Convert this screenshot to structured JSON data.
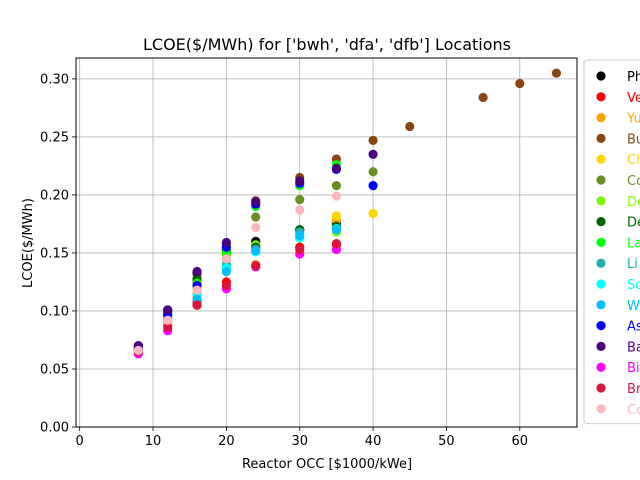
{
  "chart_data": {
    "type": "scatter",
    "title": "LCOE($/MWh) for ['bwh', 'dfa', 'dfb'] Locations",
    "xlabel": "Reactor OCC [$1000/kWe]",
    "ylabel": "LCOE($/MWh)",
    "xlim": [
      -0.5,
      67.8
    ],
    "ylim": [
      0.0,
      0.318
    ],
    "xticks": [
      0,
      10,
      20,
      30,
      40,
      50,
      60
    ],
    "yticks": [
      0.0,
      0.05,
      0.1,
      0.15,
      0.2,
      0.25,
      0.3
    ],
    "ytick_labels": [
      "0.00",
      "0.05",
      "0.10",
      "0.15",
      "0.20",
      "0.25",
      "0.30"
    ],
    "grid": true,
    "legend_position": "right (clipped)",
    "series": [
      {
        "name": "Ph",
        "color": "#000000",
        "x": [
          8,
          12,
          16,
          20,
          24,
          30,
          35
        ],
        "y": [
          0.07,
          0.1,
          0.132,
          0.145,
          0.16,
          0.17,
          0.176
        ]
      },
      {
        "name": "Ve",
        "color": "#ff0000",
        "x": [
          8,
          12,
          16,
          20,
          24,
          30,
          35
        ],
        "y": [
          0.066,
          0.088,
          0.108,
          0.125,
          0.14,
          0.155,
          0.157
        ]
      },
      {
        "name": "Yu",
        "color": "#ffa500",
        "x": [
          8,
          12,
          16,
          20,
          24,
          30,
          35
        ],
        "y": [
          0.066,
          0.09,
          0.112,
          0.14,
          0.14,
          0.165,
          0.178
        ]
      },
      {
        "name": "Bu",
        "color": "#8b4513",
        "x": [
          8,
          12,
          16,
          20,
          24,
          30,
          35,
          40,
          45,
          55,
          60,
          65
        ],
        "y": [
          0.07,
          0.1,
          0.133,
          0.158,
          0.195,
          0.215,
          0.231,
          0.247,
          0.259,
          0.284,
          0.296,
          0.305
        ]
      },
      {
        "name": "Ch",
        "color": "#ffd700",
        "x": [
          8,
          12,
          16,
          20,
          24,
          30,
          35,
          40
        ],
        "y": [
          0.066,
          0.09,
          0.115,
          0.14,
          0.155,
          0.163,
          0.182,
          0.184
        ]
      },
      {
        "name": "Co",
        "color": "#6b8e23",
        "x": [
          8,
          12,
          16,
          20,
          24,
          30,
          35,
          40
        ],
        "y": [
          0.068,
          0.098,
          0.126,
          0.152,
          0.181,
          0.196,
          0.208,
          0.22
        ]
      },
      {
        "name": "De",
        "color": "#7cfc00",
        "x": [
          8,
          12,
          16,
          20,
          24,
          30,
          35
        ],
        "y": [
          0.067,
          0.095,
          0.12,
          0.148,
          0.157,
          0.163,
          0.168
        ]
      },
      {
        "name": "De",
        "color": "#006400",
        "x": [
          8,
          12,
          16,
          20,
          24,
          30,
          35
        ],
        "y": [
          0.069,
          0.099,
          0.128,
          0.152,
          0.155,
          0.17,
          0.173
        ]
      },
      {
        "name": "La",
        "color": "#00ff00",
        "x": [
          8,
          12,
          16,
          20,
          24,
          30,
          35
        ],
        "y": [
          0.068,
          0.097,
          0.124,
          0.15,
          0.19,
          0.208,
          0.226
        ]
      },
      {
        "name": "Li",
        "color": "#20b2aa",
        "x": [
          8,
          12,
          16,
          20,
          24,
          30,
          35
        ],
        "y": [
          0.067,
          0.094,
          0.118,
          0.14,
          0.153,
          0.168,
          0.17
        ]
      },
      {
        "name": "So",
        "color": "#00ffff",
        "x": [
          8,
          12,
          16,
          20,
          24,
          30,
          35
        ],
        "y": [
          0.066,
          0.092,
          0.114,
          0.137,
          0.151,
          0.163,
          0.171
        ]
      },
      {
        "name": "W",
        "color": "#00bfff",
        "x": [
          8,
          12,
          16,
          20,
          24,
          30,
          35
        ],
        "y": [
          0.066,
          0.093,
          0.11,
          0.134,
          0.152,
          0.165,
          0.17
        ]
      },
      {
        "name": "As",
        "color": "#0000ff",
        "x": [
          8,
          12,
          16,
          20,
          24,
          30,
          35,
          40
        ],
        "y": [
          0.068,
          0.097,
          0.122,
          0.155,
          0.192,
          0.21,
          0.222,
          0.208
        ]
      },
      {
        "name": "Ba",
        "color": "#4b0082",
        "x": [
          8,
          12,
          16,
          20,
          24,
          30,
          35,
          40
        ],
        "y": [
          0.07,
          0.101,
          0.134,
          0.159,
          0.194,
          0.212,
          0.223,
          0.235
        ]
      },
      {
        "name": "Bi",
        "color": "#ff00ff",
        "x": [
          8,
          12,
          16,
          20,
          24,
          30,
          35
        ],
        "y": [
          0.063,
          0.083,
          0.105,
          0.119,
          0.138,
          0.149,
          0.153
        ]
      },
      {
        "name": "Br",
        "color": "#dc143c",
        "x": [
          8,
          12,
          16,
          20,
          24,
          30,
          35
        ],
        "y": [
          0.065,
          0.086,
          0.105,
          0.122,
          0.139,
          0.153,
          0.158
        ]
      },
      {
        "name": "Co",
        "color": "#ffb6c1",
        "x": [
          8,
          12,
          16,
          20,
          24,
          30,
          35
        ],
        "y": [
          0.066,
          0.092,
          0.118,
          0.145,
          0.172,
          0.187,
          0.199
        ]
      }
    ]
  }
}
